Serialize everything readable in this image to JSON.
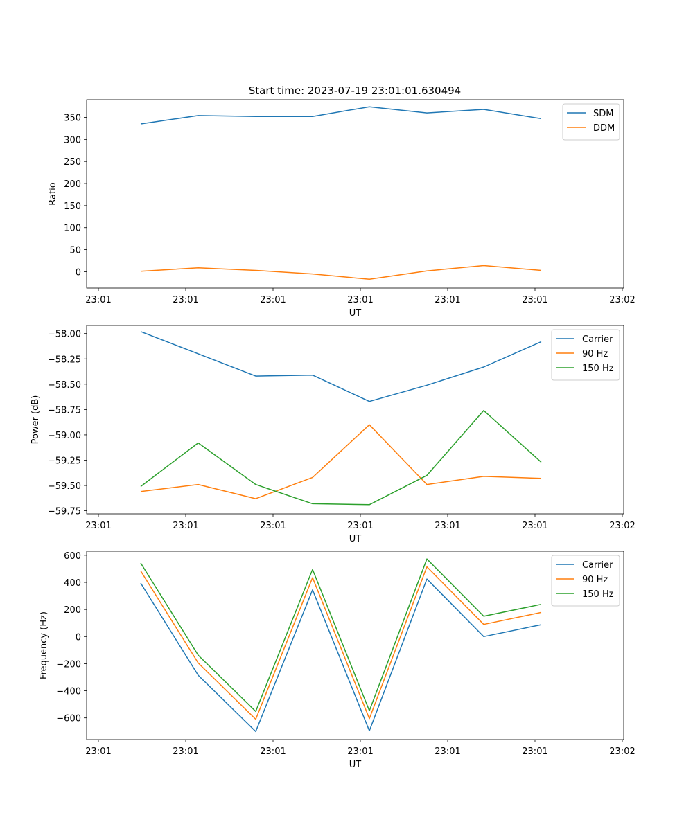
{
  "figure_title": "Start time: 2023-07-19 23:01:01.630494",
  "colors": {
    "blue": "#1f77b4",
    "orange": "#ff7f0e",
    "green": "#2ca02c"
  },
  "chart_data": [
    {
      "type": "line",
      "title": "Start time: 2023-07-19 23:01:01.630494",
      "xlabel": "UT",
      "ylabel": "Ratio",
      "xticks": [
        "23:01",
        "23:01",
        "23:01",
        "23:01",
        "23:01",
        "23:01",
        "23:02"
      ],
      "ylim": [
        -37,
        390
      ],
      "yticks": [
        {
          "v": 0,
          "label": "0"
        },
        {
          "v": 50,
          "label": "50"
        },
        {
          "v": 100,
          "label": "100"
        },
        {
          "v": 150,
          "label": "150"
        },
        {
          "v": 200,
          "label": "200"
        },
        {
          "v": 250,
          "label": "250"
        },
        {
          "v": 300,
          "label": "300"
        },
        {
          "v": 350,
          "label": "350"
        }
      ],
      "legend_loc": "top-right",
      "series": [
        {
          "name": "SDM",
          "color": "#1f77b4",
          "values": [
            335,
            354,
            352,
            352,
            374,
            360,
            368,
            347
          ]
        },
        {
          "name": "DDM",
          "color": "#ff7f0e",
          "values": [
            1,
            9,
            3,
            -5,
            -17,
            2,
            14,
            3
          ]
        }
      ]
    },
    {
      "type": "line",
      "xlabel": "UT",
      "ylabel": "Power (dB)",
      "xticks": [
        "23:01",
        "23:01",
        "23:01",
        "23:01",
        "23:01",
        "23:01",
        "23:02"
      ],
      "ylim": [
        -59.78,
        -57.92
      ],
      "yticks": [
        {
          "v": -58.0,
          "label": "−58.00"
        },
        {
          "v": -58.25,
          "label": "−58.25"
        },
        {
          "v": -58.5,
          "label": "−58.50"
        },
        {
          "v": -58.75,
          "label": "−58.75"
        },
        {
          "v": -59.0,
          "label": "−59.00"
        },
        {
          "v": -59.25,
          "label": "−59.25"
        },
        {
          "v": -59.5,
          "label": "−59.50"
        },
        {
          "v": -59.75,
          "label": "−59.75"
        }
      ],
      "legend_loc": "top-right",
      "series": [
        {
          "name": "Carrier",
          "color": "#1f77b4",
          "values": [
            -57.98,
            -58.2,
            -58.42,
            -58.41,
            -58.67,
            -58.51,
            -58.33,
            -58.08
          ]
        },
        {
          "name": "90 Hz",
          "color": "#ff7f0e",
          "values": [
            -59.56,
            -59.49,
            -59.63,
            -59.42,
            -58.9,
            -59.49,
            -59.41,
            -59.43
          ]
        },
        {
          "name": "150 Hz",
          "color": "#2ca02c",
          "values": [
            -59.51,
            -59.08,
            -59.49,
            -59.68,
            -59.69,
            -59.4,
            -58.76,
            -59.27
          ]
        }
      ]
    },
    {
      "type": "line",
      "xlabel": "UT",
      "ylabel": "Frequency (Hz)",
      "xticks": [
        "23:01",
        "23:01",
        "23:01",
        "23:01",
        "23:01",
        "23:01",
        "23:02"
      ],
      "ylim": [
        -760,
        630
      ],
      "yticks": [
        {
          "v": -600,
          "label": "−600"
        },
        {
          "v": -400,
          "label": "−400"
        },
        {
          "v": -200,
          "label": "−200"
        },
        {
          "v": 0,
          "label": "0"
        },
        {
          "v": 200,
          "label": "200"
        },
        {
          "v": 400,
          "label": "400"
        },
        {
          "v": 600,
          "label": "600"
        }
      ],
      "legend_loc": "top-right",
      "series": [
        {
          "name": "Carrier",
          "color": "#1f77b4",
          "values": [
            395,
            -285,
            -700,
            345,
            -695,
            425,
            0,
            88
          ]
        },
        {
          "name": "90 Hz",
          "color": "#ff7f0e",
          "values": [
            485,
            -195,
            -610,
            435,
            -605,
            515,
            90,
            178
          ]
        },
        {
          "name": "150 Hz",
          "color": "#2ca02c",
          "values": [
            543,
            -137,
            -552,
            495,
            -547,
            573,
            150,
            238
          ]
        }
      ]
    }
  ]
}
